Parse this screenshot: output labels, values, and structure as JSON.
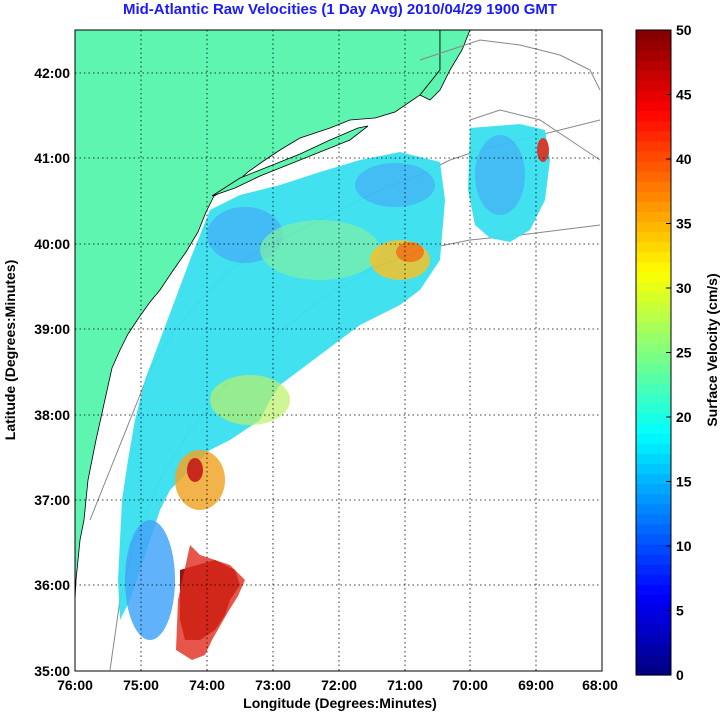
{
  "chart_data": {
    "type": "heatmap",
    "title": "Mid-Atlantic Raw Velocities (1 Day Avg) 2010/04/29 1900 GMT",
    "xlabel": "Longitude (Degrees:Minutes)",
    "ylabel": "Latitude (Degrees:Minutes)",
    "x_ticks": [
      "76:00",
      "75:00",
      "74:00",
      "73:00",
      "72:00",
      "71:00",
      "70:00",
      "69:00",
      "68:00"
    ],
    "y_ticks": [
      "35:00",
      "36:00",
      "37:00",
      "38:00",
      "39:00",
      "40:00",
      "41:00",
      "42:00"
    ],
    "xlim": [
      -76,
      -68
    ],
    "ylim": [
      35,
      42.5
    ],
    "grid": true,
    "colorbar": {
      "label": "Surface Velocity (cm/s)",
      "range": [
        0,
        50
      ],
      "ticks": [
        "0",
        "5",
        "10",
        "15",
        "20",
        "25",
        "30",
        "35",
        "40",
        "45",
        "50"
      ],
      "colormap": "jet"
    },
    "land_color": "#5ef5b0",
    "title_color": "#1a1aff"
  }
}
